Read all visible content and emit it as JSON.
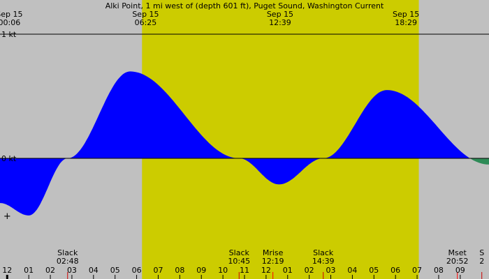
{
  "chart_data": {
    "type": "area",
    "title": "Alki Point, 1 mi west of (depth 601 ft), Puget Sound, Washington Current",
    "y_labels": [
      {
        "label": "1 kt",
        "value": 1
      },
      {
        "label": "0 kt",
        "value": 0
      }
    ],
    "ylim": [
      -0.55,
      1.05
    ],
    "xlim": [
      -0.3333,
      22.3333
    ],
    "colors": {
      "background": "#c0c0c0",
      "daylight": "#cccc00",
      "flood": "#0000ff",
      "ebb": "#2e8b57",
      "moon_marker": "#ff0000"
    },
    "daylight": {
      "start_hour": 6.25,
      "end_hour": 19.08
    },
    "series": [
      {
        "type": "tidal_current_knots",
        "points": [
          {
            "hour": -0.333,
            "value": -0.36
          },
          {
            "hour": 1.0,
            "value": -0.46
          },
          {
            "hour": 2.8,
            "value": 0.0
          },
          {
            "hour": 5.7,
            "value": 0.7
          },
          {
            "hour": 10.75,
            "value": 0.0
          },
          {
            "hour": 12.6,
            "value": -0.21
          },
          {
            "hour": 14.65,
            "value": 0.0
          },
          {
            "hour": 17.6,
            "value": 0.55
          },
          {
            "hour": 22.333,
            "value": -0.05
          }
        ]
      }
    ],
    "top_annotations": [
      {
        "date": "Sep 15",
        "time": "00:06",
        "hour": 0.1
      },
      {
        "date": "Sep 15",
        "time": "06:25",
        "hour": 6.4167
      },
      {
        "date": "Sep 15",
        "time": "12:39",
        "hour": 12.65
      },
      {
        "date": "Sep 15",
        "time": "18:29",
        "hour": 18.4833
      }
    ],
    "bottom_events": [
      {
        "name": "Slack",
        "time": "02:48",
        "hour": 2.8,
        "moon": false
      },
      {
        "name": "Slack",
        "time": "10:45",
        "hour": 10.75,
        "moon": false
      },
      {
        "name": "Mrise",
        "time": "12:19",
        "hour": 12.3167,
        "moon": true
      },
      {
        "name": "Slack",
        "time": "14:39",
        "hour": 14.65,
        "moon": false
      },
      {
        "name": "Mset",
        "time": "20:52",
        "hour": 20.8667,
        "moon": true
      },
      {
        "name": "S",
        "time": "2",
        "hour": 22.0,
        "moon": false
      }
    ],
    "x_ticks": [
      {
        "label": "11",
        "hour": -1
      },
      {
        "label": "12",
        "hour": 0,
        "major": true
      },
      {
        "label": "01",
        "hour": 1
      },
      {
        "label": "02",
        "hour": 2
      },
      {
        "label": "03",
        "hour": 3
      },
      {
        "label": "04",
        "hour": 4
      },
      {
        "label": "05",
        "hour": 5
      },
      {
        "label": "06",
        "hour": 6
      },
      {
        "label": "07",
        "hour": 7
      },
      {
        "label": "08",
        "hour": 8
      },
      {
        "label": "09",
        "hour": 9
      },
      {
        "label": "10",
        "hour": 10
      },
      {
        "label": "11",
        "hour": 11
      },
      {
        "label": "12",
        "hour": 12
      },
      {
        "label": "01",
        "hour": 13
      },
      {
        "label": "02",
        "hour": 14
      },
      {
        "label": "03",
        "hour": 15
      },
      {
        "label": "04",
        "hour": 16
      },
      {
        "label": "05",
        "hour": 17
      },
      {
        "label": "06",
        "hour": 18
      },
      {
        "label": "07",
        "hour": 19
      },
      {
        "label": "08",
        "hour": 20
      },
      {
        "label": "09",
        "hour": 21
      }
    ],
    "marker": {
      "hour": 0.0,
      "value": -0.46,
      "symbol": "+"
    }
  }
}
